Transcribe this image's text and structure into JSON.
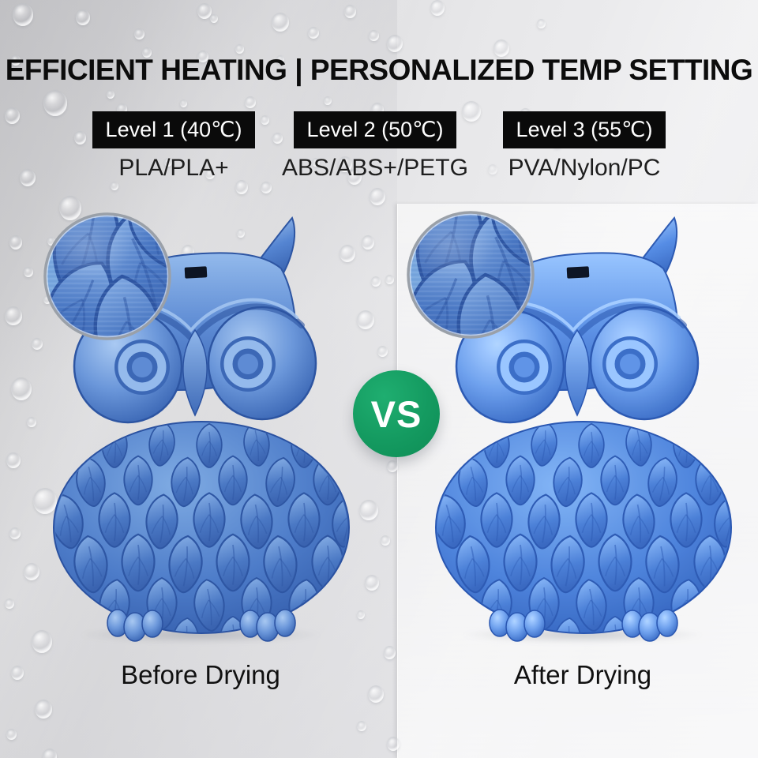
{
  "title": "EFFICIENT HEATING | PERSONALIZED TEMP SETTING",
  "temperature_levels": [
    {
      "label": "Level 1 (40℃)",
      "materials": "PLA/PLA+"
    },
    {
      "label": "Level 2 (50℃)",
      "materials": "ABS/ABS+/PETG"
    },
    {
      "label": "Level 3 (55℃)",
      "materials": "PVA/Nylon/PC"
    }
  ],
  "vs_badge": {
    "label": "VS"
  },
  "comparison": {
    "before": {
      "label": "Before Drying"
    },
    "after": {
      "label": "After Drying"
    }
  },
  "colors": {
    "vs_green": "#149a60",
    "badge_background": "#0a0a0a",
    "badge_text": "#ffffff",
    "owl_filament_blue": "#4d7cc9",
    "title_text": "#0c0c0c"
  }
}
